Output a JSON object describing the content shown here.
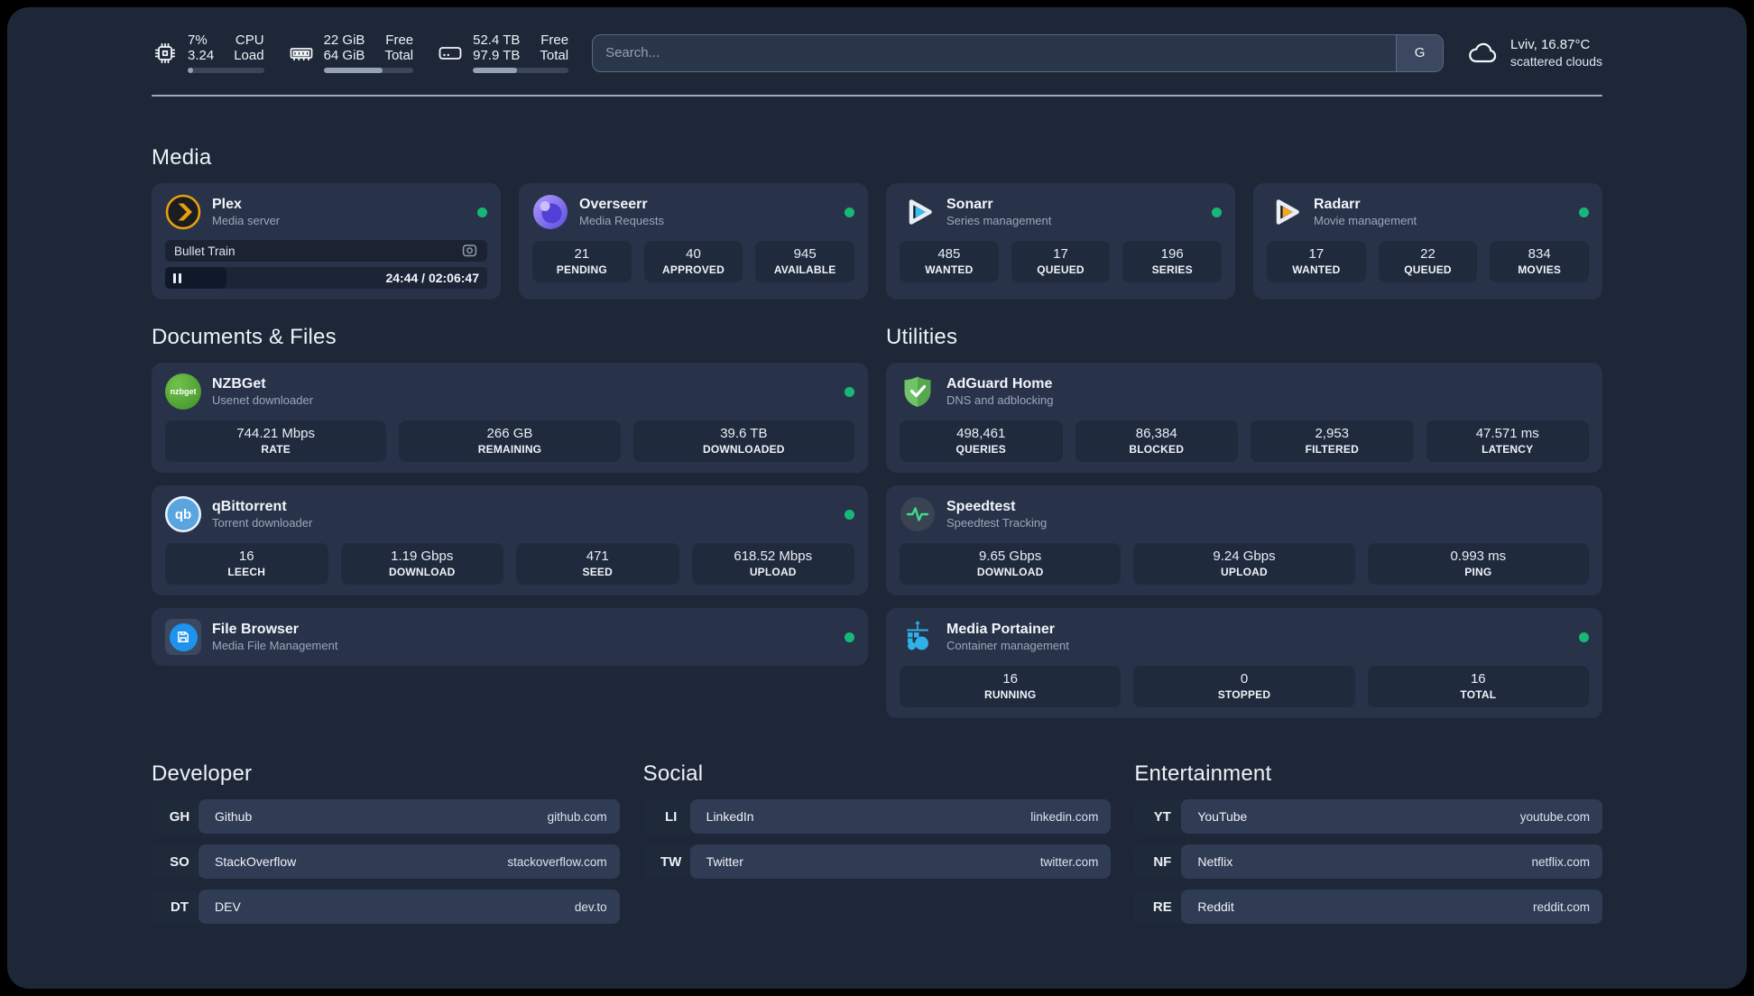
{
  "colors": {
    "background": "#1d2737",
    "card": "#283349",
    "tile": "#1f2a3d",
    "status_online": "#17b877",
    "plex_accent": "#e5a00d",
    "sonarr_accent": "#33c0f0",
    "radarr_accent": "#f5a623",
    "adguard_accent": "#5fb757",
    "portainer_accent": "#2fb0e6"
  },
  "header": {
    "cpu": {
      "value1": "7%",
      "value2": "3.24",
      "label1": "CPU",
      "label2": "Load",
      "progress_pct": 7
    },
    "ram": {
      "value1": "22 GiB",
      "value2": "64 GiB",
      "label1": "Free",
      "label2": "Total",
      "progress_pct": 66
    },
    "disk": {
      "value1": "52.4 TB",
      "value2": "97.9 TB",
      "label1": "Free",
      "label2": "Total",
      "progress_pct": 46
    },
    "search": {
      "placeholder": "Search...",
      "engine_label": "G"
    },
    "weather": {
      "line1": "Lviv, 16.87°C",
      "line2": "scattered clouds"
    }
  },
  "media": {
    "title": "Media",
    "plex": {
      "name": "Plex",
      "subtitle": "Media server",
      "player": {
        "title": "Bullet Train",
        "time": "24:44 / 02:06:47",
        "progress_pct": 19
      }
    },
    "overseerr": {
      "name": "Overseerr",
      "subtitle": "Media Requests",
      "stats": [
        {
          "value": "21",
          "label": "PENDING"
        },
        {
          "value": "40",
          "label": "APPROVED"
        },
        {
          "value": "945",
          "label": "AVAILABLE"
        }
      ]
    },
    "sonarr": {
      "name": "Sonarr",
      "subtitle": "Series management",
      "stats": [
        {
          "value": "485",
          "label": "WANTED"
        },
        {
          "value": "17",
          "label": "QUEUED"
        },
        {
          "value": "196",
          "label": "SERIES"
        }
      ]
    },
    "radarr": {
      "name": "Radarr",
      "subtitle": "Movie management",
      "stats": [
        {
          "value": "17",
          "label": "WANTED"
        },
        {
          "value": "22",
          "label": "QUEUED"
        },
        {
          "value": "834",
          "label": "MOVIES"
        }
      ]
    }
  },
  "documents": {
    "title": "Documents & Files",
    "nzbget": {
      "name": "NZBGet",
      "subtitle": "Usenet downloader",
      "icon_text": "nzbget",
      "stats": [
        {
          "value": "744.21 Mbps",
          "label": "RATE"
        },
        {
          "value": "266 GB",
          "label": "REMAINING"
        },
        {
          "value": "39.6 TB",
          "label": "DOWNLOADED"
        }
      ]
    },
    "qbittorrent": {
      "name": "qBittorrent",
      "subtitle": "Torrent downloader",
      "icon_text": "qb",
      "stats": [
        {
          "value": "16",
          "label": "LEECH"
        },
        {
          "value": "1.19 Gbps",
          "label": "DOWNLOAD"
        },
        {
          "value": "471",
          "label": "SEED"
        },
        {
          "value": "618.52 Mbps",
          "label": "UPLOAD"
        }
      ]
    },
    "filebrowser": {
      "name": "File Browser",
      "subtitle": "Media File Management"
    }
  },
  "utilities": {
    "title": "Utilities",
    "adguard": {
      "name": "AdGuard Home",
      "subtitle": "DNS and adblocking",
      "stats": [
        {
          "value": "498,461",
          "label": "QUERIES"
        },
        {
          "value": "86,384",
          "label": "BLOCKED"
        },
        {
          "value": "2,953",
          "label": "FILTERED"
        },
        {
          "value": "47.571 ms",
          "label": "LATENCY"
        }
      ]
    },
    "speedtest": {
      "name": "Speedtest",
      "subtitle": "Speedtest Tracking",
      "stats": [
        {
          "value": "9.65 Gbps",
          "label": "DOWNLOAD"
        },
        {
          "value": "9.24 Gbps",
          "label": "UPLOAD"
        },
        {
          "value": "0.993 ms",
          "label": "PING"
        }
      ]
    },
    "portainer": {
      "name": "Media Portainer",
      "subtitle": "Container management",
      "stats": [
        {
          "value": "16",
          "label": "RUNNING"
        },
        {
          "value": "0",
          "label": "STOPPED"
        },
        {
          "value": "16",
          "label": "TOTAL"
        }
      ]
    }
  },
  "links": {
    "developer": {
      "title": "Developer",
      "items": [
        {
          "abbr": "GH",
          "name": "Github",
          "url": "github.com"
        },
        {
          "abbr": "SO",
          "name": "StackOverflow",
          "url": "stackoverflow.com"
        },
        {
          "abbr": "DT",
          "name": "DEV",
          "url": "dev.to"
        }
      ]
    },
    "social": {
      "title": "Social",
      "items": [
        {
          "abbr": "LI",
          "name": "LinkedIn",
          "url": "linkedin.com"
        },
        {
          "abbr": "TW",
          "name": "Twitter",
          "url": "twitter.com"
        }
      ]
    },
    "entertainment": {
      "title": "Entertainment",
      "items": [
        {
          "abbr": "YT",
          "name": "YouTube",
          "url": "youtube.com"
        },
        {
          "abbr": "NF",
          "name": "Netflix",
          "url": "netflix.com"
        },
        {
          "abbr": "RE",
          "name": "Reddit",
          "url": "reddit.com"
        }
      ]
    }
  }
}
